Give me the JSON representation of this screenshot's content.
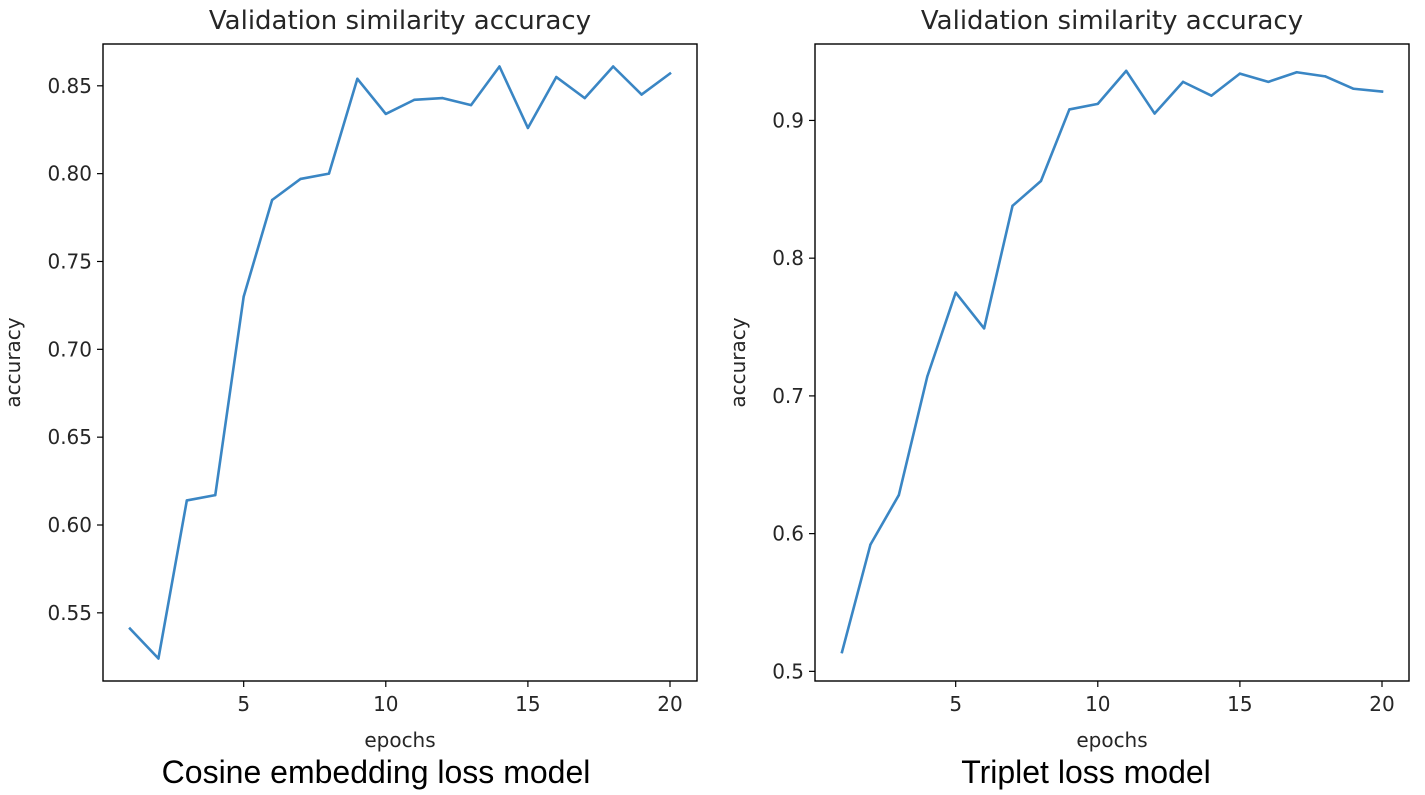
{
  "captions": {
    "left": "Cosine embedding loss model",
    "right": "Triplet loss model"
  },
  "colors": {
    "line": "#3a86c4",
    "axis": "#000000",
    "text": "#262626"
  },
  "chart_data": [
    {
      "type": "line",
      "title": "Validation similarity accuracy",
      "xlabel": "epochs",
      "ylabel": "accuracy",
      "xlim": [
        0.05,
        20.95
      ],
      "ylim": [
        0.5112,
        0.8738
      ],
      "xticks": [
        5,
        10,
        15,
        20
      ],
      "xtick_labels": [
        "5",
        "10",
        "15",
        "20"
      ],
      "yticks": [
        0.55,
        0.6,
        0.65,
        0.7,
        0.75,
        0.8,
        0.85
      ],
      "ytick_labels": [
        "0.55",
        "0.60",
        "0.65",
        "0.70",
        "0.75",
        "0.80",
        "0.85"
      ],
      "grid": false,
      "x": [
        1,
        2,
        3,
        4,
        5,
        6,
        7,
        8,
        9,
        10,
        11,
        12,
        13,
        14,
        15,
        16,
        17,
        18,
        19,
        20
      ],
      "series": [
        {
          "values": [
            0.541,
            0.524,
            0.614,
            0.617,
            0.73,
            0.785,
            0.797,
            0.8,
            0.854,
            0.834,
            0.842,
            0.843,
            0.839,
            0.861,
            0.826,
            0.855,
            0.843,
            0.861,
            0.845,
            0.857
          ]
        }
      ]
    },
    {
      "type": "line",
      "title": "Validation similarity accuracy",
      "xlabel": "epochs",
      "ylabel": "accuracy",
      "xlim": [
        0.05,
        20.95
      ],
      "ylim": [
        0.493,
        0.9555
      ],
      "xticks": [
        5,
        10,
        15,
        20
      ],
      "xtick_labels": [
        "5",
        "10",
        "15",
        "20"
      ],
      "yticks": [
        0.5,
        0.6,
        0.7,
        0.8,
        0.9
      ],
      "ytick_labels": [
        "0.5",
        "0.6",
        "0.7",
        "0.8",
        "0.9"
      ],
      "grid": false,
      "x": [
        1,
        2,
        3,
        4,
        5,
        6,
        7,
        8,
        9,
        10,
        11,
        12,
        13,
        14,
        15,
        16,
        17,
        18,
        19,
        20
      ],
      "series": [
        {
          "values": [
            0.514,
            0.592,
            0.628,
            0.714,
            0.775,
            0.749,
            0.838,
            0.856,
            0.908,
            0.912,
            0.936,
            0.905,
            0.928,
            0.918,
            0.934,
            0.928,
            0.935,
            0.932,
            0.923,
            0.921
          ]
        }
      ]
    }
  ]
}
